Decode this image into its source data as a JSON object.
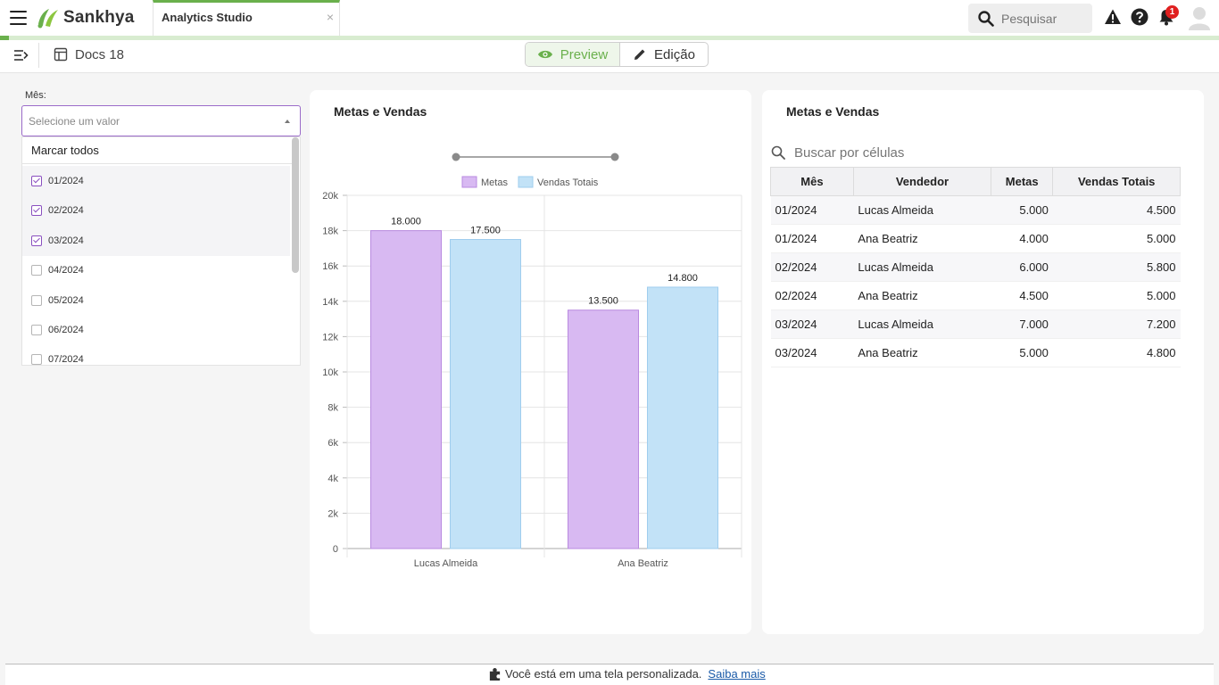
{
  "topbar": {
    "brand": "Sankhya",
    "tab_title": "Analytics Studio",
    "tab_close": "×",
    "search_placeholder": "Pesquisar",
    "notification_count": "1",
    "accent_color": "#6ab04c"
  },
  "subbar": {
    "doc_title": "Docs 18",
    "preview_label": "Preview",
    "edit_label": "Edição"
  },
  "filter": {
    "label": "Mês:",
    "placeholder": "Selecione um valor",
    "select_all": "Marcar todos",
    "options": [
      {
        "label": "01/2024",
        "checked": true
      },
      {
        "label": "02/2024",
        "checked": true
      },
      {
        "label": "03/2024",
        "checked": true
      },
      {
        "label": "04/2024",
        "checked": false
      },
      {
        "label": "05/2024",
        "checked": false
      },
      {
        "label": "06/2024",
        "checked": false
      },
      {
        "label": "07/2024",
        "checked": false
      }
    ]
  },
  "chart_card": {
    "title": "Metas e Vendas"
  },
  "chart_data": {
    "type": "bar",
    "title": "Metas e Vendas",
    "categories": [
      "Lucas Almeida",
      "Ana Beatriz"
    ],
    "series": [
      {
        "name": "Metas",
        "values": [
          18000,
          13500
        ],
        "labels": [
          "18.000",
          "13.500"
        ],
        "color": "#d8b9f2",
        "stroke": "#b98ae0"
      },
      {
        "name": "Vendas Totais",
        "values": [
          17500,
          14800
        ],
        "labels": [
          "17.500",
          "14.800"
        ],
        "color": "#c2e2f7",
        "stroke": "#9fcdee"
      }
    ],
    "ylim": [
      0,
      20000
    ],
    "yticks": [
      "0",
      "2k",
      "4k",
      "6k",
      "8k",
      "10k",
      "12k",
      "14k",
      "16k",
      "18k",
      "20k"
    ],
    "legend_position": "top",
    "grid": true
  },
  "table_card": {
    "title": "Metas e Vendas",
    "search_placeholder": "Buscar por células",
    "columns": [
      "Mês",
      "Vendedor",
      "Metas",
      "Vendas Totais"
    ],
    "rows": [
      [
        "01/2024",
        "Lucas Almeida",
        "5.000",
        "4.500"
      ],
      [
        "01/2024",
        "Ana Beatriz",
        "4.000",
        "5.000"
      ],
      [
        "02/2024",
        "Lucas Almeida",
        "6.000",
        "5.800"
      ],
      [
        "02/2024",
        "Ana Beatriz",
        "4.500",
        "5.000"
      ],
      [
        "03/2024",
        "Lucas Almeida",
        "7.000",
        "7.200"
      ],
      [
        "03/2024",
        "Ana Beatriz",
        "5.000",
        "4.800"
      ]
    ]
  },
  "footer": {
    "message": "Você está em uma tela personalizada.",
    "link": "Saiba mais"
  }
}
